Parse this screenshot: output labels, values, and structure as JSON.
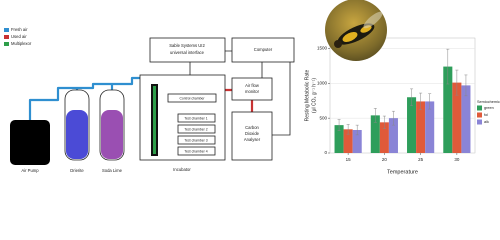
{
  "diagram": {
    "legend": [
      {
        "label": "Fresh air",
        "color": "#2f8fd0"
      },
      {
        "label": "Used air",
        "color": "#c83232"
      },
      {
        "label": "Multiplexor",
        "color": "#2e9e4a"
      }
    ],
    "interface": [
      "Sable Systems UI2",
      "universal interface"
    ],
    "computer": "Computer",
    "flow_monitor": [
      "Air flow",
      "monitor"
    ],
    "analyser": [
      "Carbon",
      "Dioxide",
      "Analyser"
    ],
    "control": "Control chamber",
    "chambers": [
      "Test chamber 1",
      "Test chamber 2",
      "Test chamber 3",
      "Test chamber 4"
    ],
    "incubator": "Incubator",
    "air_pump": "Air Pump",
    "drierite": "Drierite",
    "soda_lime": "Soda Lime"
  },
  "chart_data": {
    "type": "bar",
    "x_label": "Temperature",
    "y_label": [
      "Resting Metabolic Rate",
      "(μl CO₂ g⁻¹ h⁻¹)"
    ],
    "legend_title": "Semiochemical",
    "categories": [
      "15",
      "20",
      "25",
      "30"
    ],
    "series": [
      {
        "name": "green",
        "color": "#2e9e5b",
        "values": [
          400,
          540,
          800,
          1240
        ],
        "errors": [
          80,
          100,
          120,
          250
        ]
      },
      {
        "name": "fol",
        "color": "#e05a3a",
        "values": [
          340,
          440,
          740,
          1010
        ],
        "errors": [
          70,
          90,
          120,
          180
        ]
      },
      {
        "name": "alk",
        "color": "#8a84d6",
        "values": [
          330,
          500,
          740,
          970
        ],
        "errors": [
          70,
          100,
          110,
          150
        ]
      }
    ],
    "ylim": [
      0,
      1650
    ],
    "yticks": [
      0,
      500,
      1000,
      1500
    ],
    "grid": true
  }
}
